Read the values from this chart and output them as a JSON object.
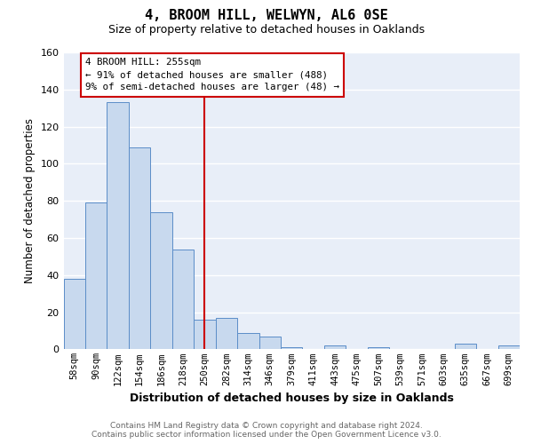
{
  "title": "4, BROOM HILL, WELWYN, AL6 0SE",
  "subtitle": "Size of property relative to detached houses in Oaklands",
  "xlabel": "Distribution of detached houses by size in Oaklands",
  "ylabel": "Number of detached properties",
  "bar_labels": [
    "58sqm",
    "90sqm",
    "122sqm",
    "154sqm",
    "186sqm",
    "218sqm",
    "250sqm",
    "282sqm",
    "314sqm",
    "346sqm",
    "379sqm",
    "411sqm",
    "443sqm",
    "475sqm",
    "507sqm",
    "539sqm",
    "571sqm",
    "603sqm",
    "635sqm",
    "667sqm",
    "699sqm"
  ],
  "bar_values": [
    38,
    79,
    133,
    109,
    74,
    54,
    16,
    17,
    9,
    7,
    1,
    0,
    2,
    0,
    1,
    0,
    0,
    0,
    3,
    0,
    2
  ],
  "bar_color": "#c8d9ee",
  "bar_edge_color": "#5b8dc8",
  "vline_index": 6,
  "vline_color": "#cc0000",
  "ylim": [
    0,
    160
  ],
  "yticks": [
    0,
    20,
    40,
    60,
    80,
    100,
    120,
    140,
    160
  ],
  "annotation_title": "4 BROOM HILL: 255sqm",
  "annotation_line1": "← 91% of detached houses are smaller (488)",
  "annotation_line2": "9% of semi-detached houses are larger (48) →",
  "annotation_box_color": "#ffffff",
  "annotation_box_edge": "#cc0000",
  "footer_line1": "Contains HM Land Registry data © Crown copyright and database right 2024.",
  "footer_line2": "Contains public sector information licensed under the Open Government Licence v3.0.",
  "background_color": "#ffffff",
  "plot_bg_color": "#e8eef8",
  "grid_color": "#ffffff",
  "title_fontsize": 11,
  "subtitle_fontsize": 9,
  "tick_fontsize": 7.5,
  "ylabel_fontsize": 8.5,
  "xlabel_fontsize": 9
}
